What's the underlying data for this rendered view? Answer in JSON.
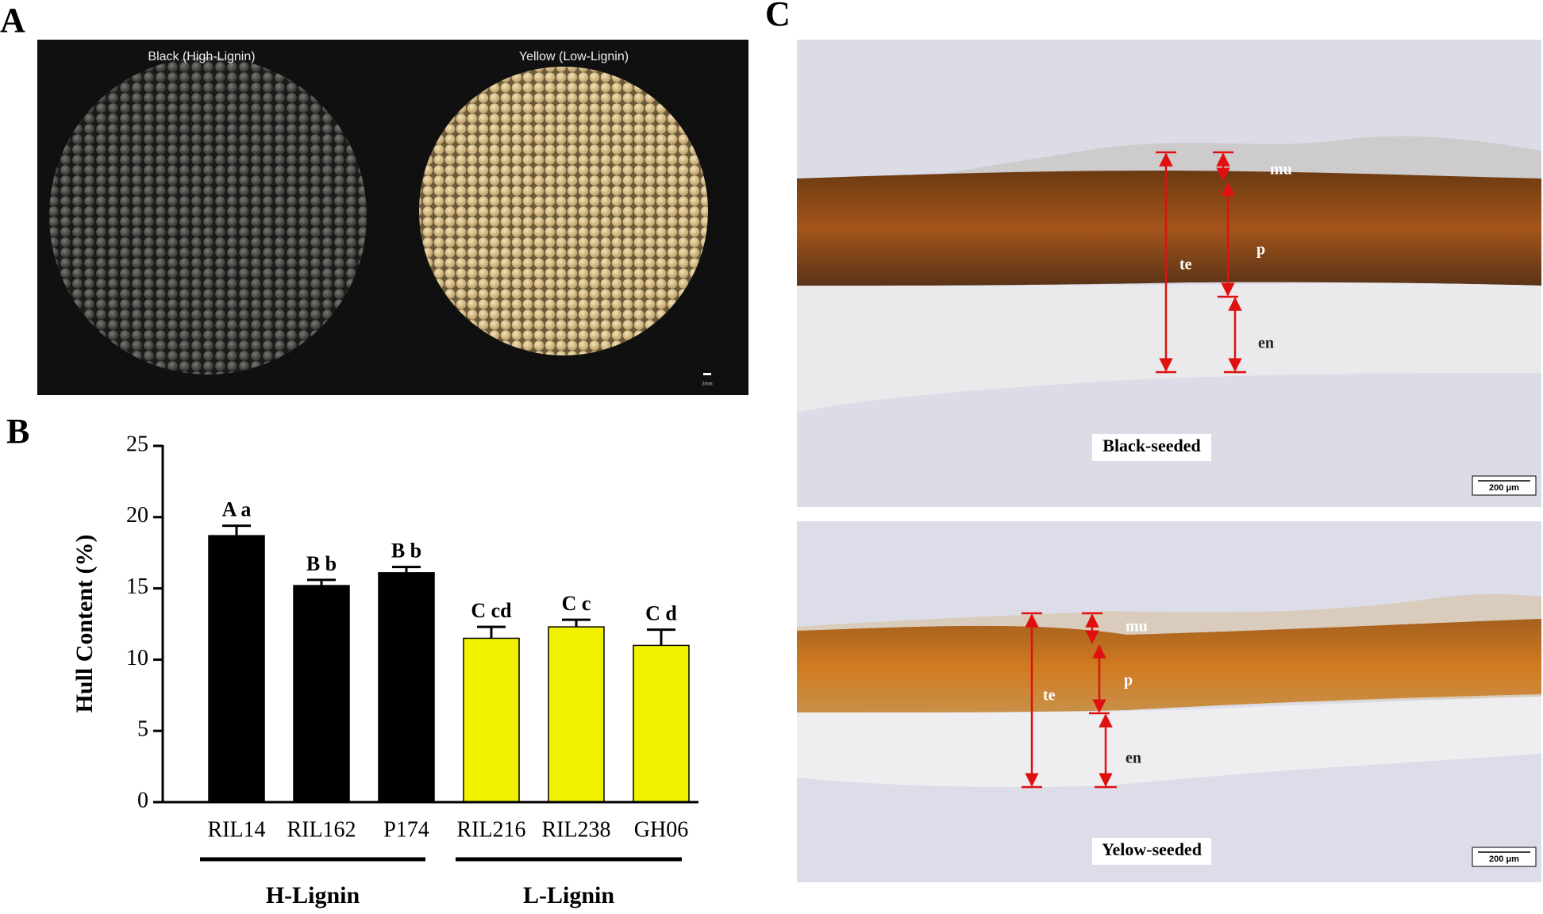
{
  "panels": {
    "A": {
      "label": "A",
      "left_caption": "Black (High-Lignin)",
      "right_caption": "Yellow (Low-Lignin)",
      "scale_label": "2mm"
    },
    "B": {
      "label": "B"
    },
    "C": {
      "label": "C",
      "images": [
        {
          "caption": "Black-seeded",
          "scale_label": "200 μm",
          "te": "te",
          "mu": "mu",
          "p": "p",
          "en": "en"
        },
        {
          "caption": "Yelow-seeded",
          "scale_label": "200 μm",
          "te": "te",
          "mu": "mu",
          "p": "p",
          "en": "en"
        }
      ]
    }
  },
  "chart_data": {
    "type": "bar",
    "y_label": "Hull Content (%)",
    "categories": [
      "RIL14",
      "RIL162",
      "P174",
      "RIL216",
      "RIL238",
      "GH06"
    ],
    "values": [
      18.7,
      15.2,
      16.1,
      11.5,
      12.3,
      11.0
    ],
    "errors": [
      0.7,
      0.4,
      0.4,
      0.8,
      0.5,
      1.1
    ],
    "colors": [
      "#000000",
      "#000000",
      "#000000",
      "#f2f200",
      "#f2f200",
      "#f2f200"
    ],
    "significance": [
      "A a",
      "B b",
      "B b",
      "C cd",
      "C c",
      "C d"
    ],
    "groups": [
      "H-Lignin",
      "L-Lignin"
    ],
    "ylim": [
      0,
      25
    ],
    "yticks": [
      0,
      5,
      10,
      15,
      20,
      25
    ]
  }
}
